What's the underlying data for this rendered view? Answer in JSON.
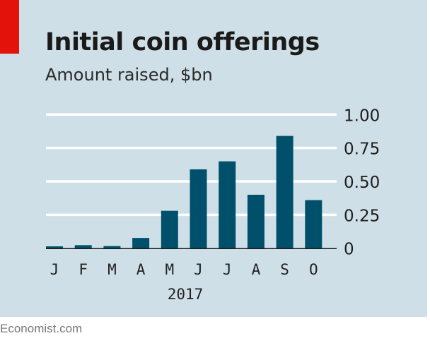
{
  "chart_data": {
    "type": "bar",
    "title": "Initial coin offerings",
    "subtitle": "Amount raised, $bn",
    "categories": [
      "J",
      "F",
      "M",
      "A",
      "M",
      "J",
      "J",
      "A",
      "S",
      "O"
    ],
    "values": [
      0.014,
      0.023,
      0.016,
      0.077,
      0.28,
      0.59,
      0.65,
      0.4,
      0.84,
      0.36
    ],
    "xlabel": "2017",
    "ylabel": "",
    "ylim": [
      0,
      1.0
    ],
    "yticks": [
      0,
      0.25,
      0.5,
      0.75,
      1.0
    ],
    "ytick_labels": [
      "0",
      "0.25",
      "0.50",
      "0.75",
      "1.00"
    ],
    "grid": true,
    "yaxis_side": "right",
    "bar_color": "#00506b",
    "background_color": "#cfdfe7",
    "accent_color": "#e3120b"
  },
  "source": "Economist.com"
}
